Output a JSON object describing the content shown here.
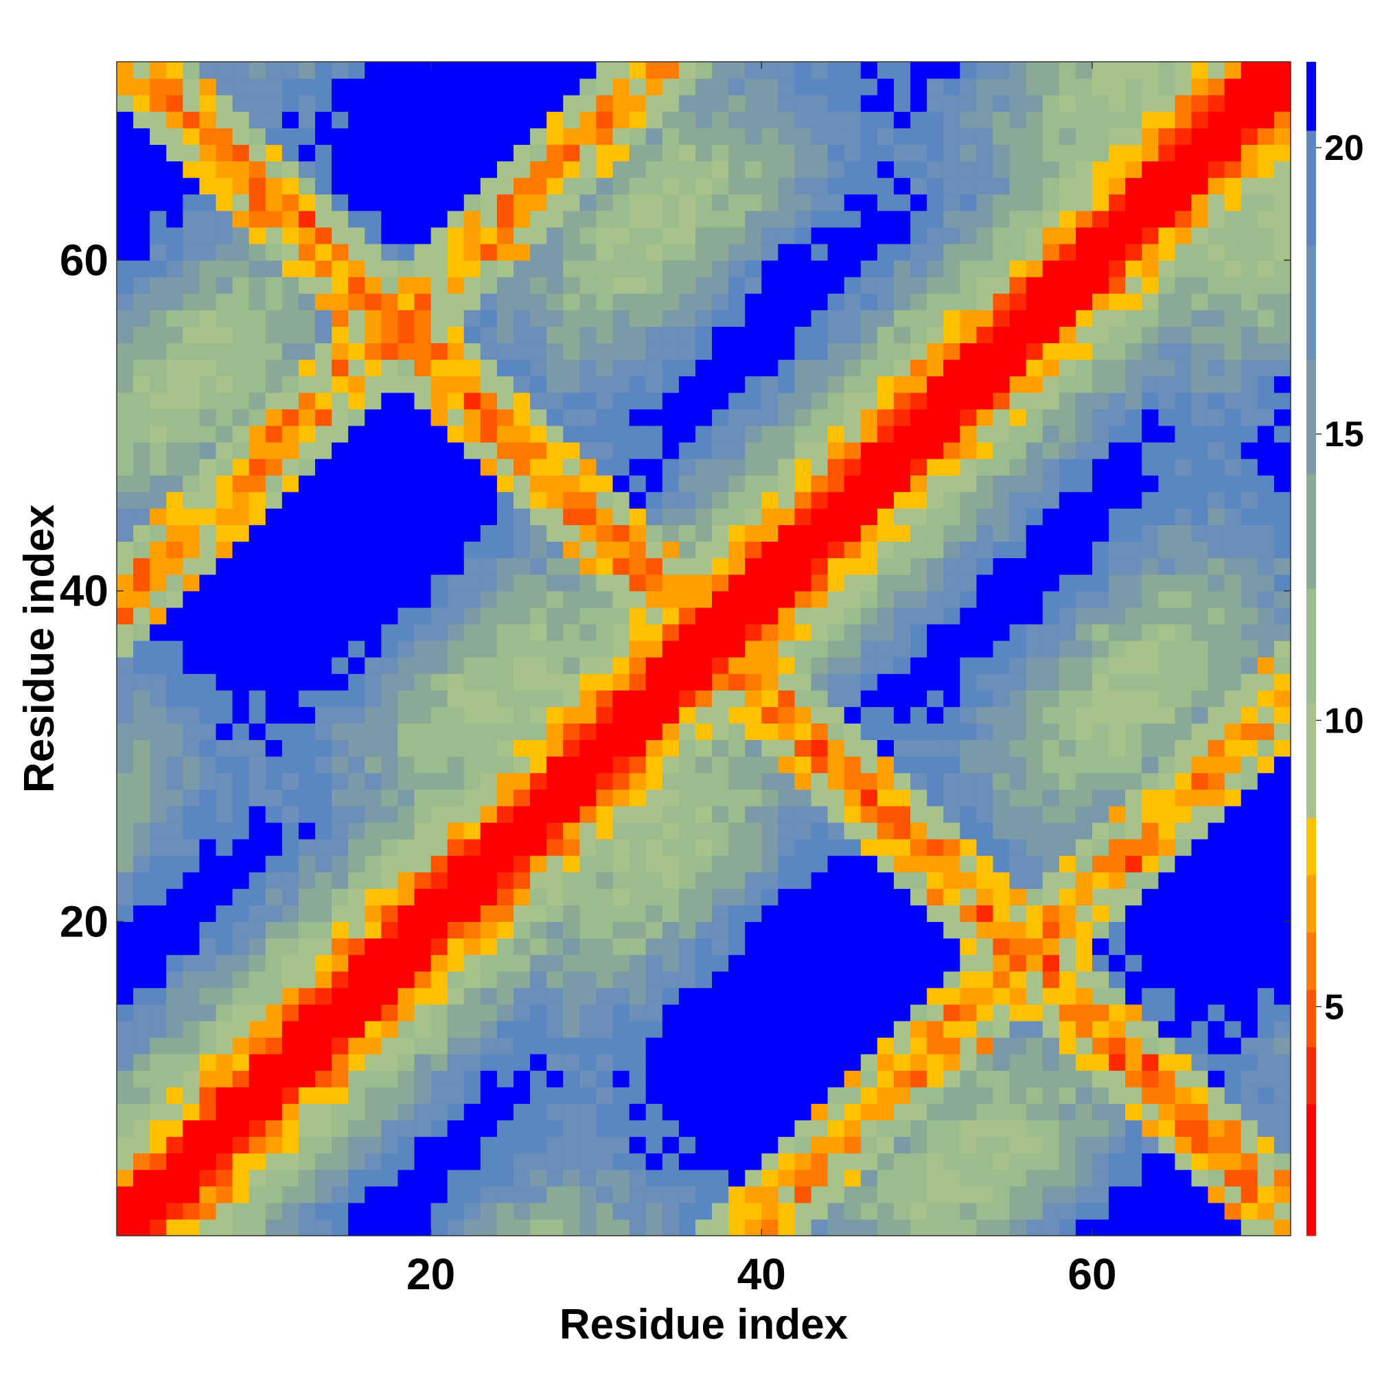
{
  "chart_data": {
    "type": "heatmap",
    "title": "",
    "xlabel": "Residue index",
    "ylabel": "Residue index",
    "n": 71,
    "xlim": [
      1,
      72
    ],
    "ylim": [
      1,
      72
    ],
    "x_ticks": [
      20,
      40,
      60
    ],
    "y_ticks": [
      20,
      40,
      60
    ],
    "colorbar": {
      "ticks": [
        5,
        10,
        15,
        20
      ],
      "range": [
        1,
        21.5
      ],
      "bands": [
        {
          "from": 1,
          "to": 3.3,
          "color": "#ff0000"
        },
        {
          "from": 3.3,
          "to": 4.3,
          "color": "#ff2a00"
        },
        {
          "from": 4.3,
          "to": 5.3,
          "color": "#ff5500"
        },
        {
          "from": 5.3,
          "to": 6.3,
          "color": "#ff7a00"
        },
        {
          "from": 6.3,
          "to": 7.3,
          "color": "#ffa000"
        },
        {
          "from": 7.3,
          "to": 8.3,
          "color": "#ffc000"
        },
        {
          "from": 8.3,
          "to": 10.3,
          "color": "#a7c28a"
        },
        {
          "from": 10.3,
          "to": 12.3,
          "color": "#9cbc8e"
        },
        {
          "from": 12.3,
          "to": 14.3,
          "color": "#8aaa96"
        },
        {
          "from": 14.3,
          "to": 16.3,
          "color": "#7a9aa8"
        },
        {
          "from": 16.3,
          "to": 18.3,
          "color": "#6b8fb8"
        },
        {
          "from": 18.3,
          "to": 20.3,
          "color": "#5a86c2"
        },
        {
          "from": 20.3,
          "to": 21.5,
          "color": "#0000ff"
        }
      ]
    },
    "cell_rule": "value[i][j] approximates the distance between residues i and j of a periodic repeat protein: 1 on the diagonal rising with |i-j| (red/orange band), secondary near-contact bands along the anti-diagonal i+j≈73 and at |i-j|≈38, blue (>20) patches between bands",
    "colors": {
      "near": "#ff0000",
      "far": "#0000ff",
      "mid_green": "#9cbc8e",
      "mid_blue": "#5a86c2"
    }
  }
}
